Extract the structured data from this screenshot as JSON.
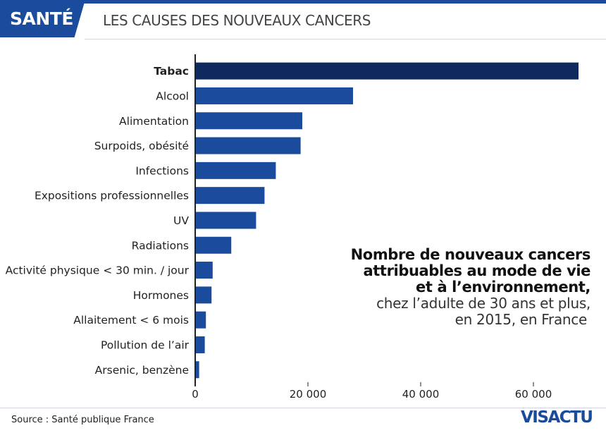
{
  "header": {
    "section": "SANTÉ",
    "title": "LES CAUSES DES NOUVEAUX CANCERS"
  },
  "colors": {
    "brand": "#1a4b9c",
    "bar": "#1a4b9c",
    "bar_highlight": "#0f2a5f",
    "axis": "#222222"
  },
  "chart_data": {
    "type": "bar",
    "orientation": "horizontal",
    "categories": [
      "Tabac",
      "Alcool",
      "Alimentation",
      "Surpoids, obésité",
      "Infections",
      "Expositions professionnelles",
      "UV",
      "Radiations",
      "Activité physique < 30 min. / jour",
      "Hormones",
      "Allaitement < 6 mois",
      "Pollution de l’air",
      "Arsenic, benzène"
    ],
    "values": [
      68000,
      28000,
      19000,
      18700,
      14300,
      12300,
      10800,
      6400,
      3100,
      2900,
      1900,
      1700,
      700
    ],
    "highlight_index": 0,
    "xlim": [
      0,
      70000
    ],
    "xticks": [
      0,
      20000,
      40000,
      60000
    ],
    "xtick_labels": [
      "0",
      "20 000",
      "40 000",
      "60 000"
    ],
    "grid": false,
    "legend": "none"
  },
  "note": {
    "line1": "Nombre de nouveaux cancers",
    "line2": "attribuables au mode de vie",
    "line3": "et à l’environnement,",
    "line4": "chez l’adulte de 30 ans et plus,",
    "line5": "en 2015, en France"
  },
  "footer": {
    "source": "Source : Santé publique France",
    "brand_left": "VIS",
    "brand_right": "ACTU"
  }
}
